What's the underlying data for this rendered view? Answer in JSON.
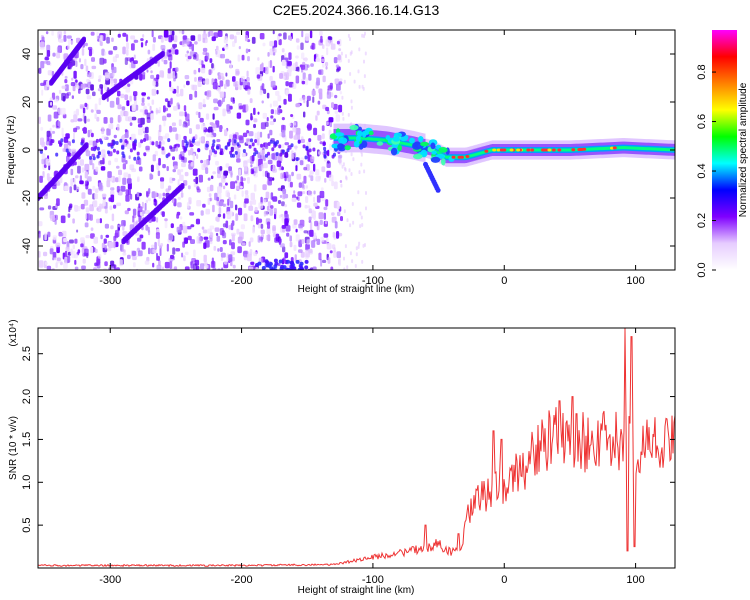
{
  "title": "C2E5.2024.366.16.14.G13",
  "chart_data": [
    {
      "type": "heatmap",
      "xlabel": "Height of straight line (km)",
      "ylabel": "Frequency (Hz)",
      "xlim": [
        -355,
        130
      ],
      "ylim": [
        -50,
        50
      ],
      "xticks": [
        -300,
        -200,
        -100,
        0,
        100
      ],
      "yticks": [
        -40,
        -20,
        0,
        20,
        40
      ],
      "colorbar": {
        "label": "Normalized spectral amplitude",
        "range": [
          0,
          0.97
        ],
        "ticks": [
          0.0,
          0.2,
          0.4,
          0.6,
          0.8
        ],
        "tick_labels": [
          "0.0",
          "0.2",
          "0.4",
          "0.6",
          "0.8"
        ],
        "colormap": [
          "#ffffff",
          "#e6ccff",
          "#7f00ff",
          "#0000ff",
          "#00ffff",
          "#00ff00",
          "#ffff00",
          "#ff8000",
          "#ff0000",
          "#ff00ff"
        ]
      },
      "features": {
        "noise_region_x": [
          -355,
          -125
        ],
        "carrier_track": [
          [
            -130,
            5
          ],
          [
            -110,
            5
          ],
          [
            -90,
            4
          ],
          [
            -70,
            2
          ],
          [
            -55,
            0
          ],
          [
            -45,
            -3
          ],
          [
            -30,
            -3
          ],
          [
            -10,
            0
          ],
          [
            0,
            0
          ],
          [
            50,
            0
          ],
          [
            90,
            1
          ],
          [
            130,
            0
          ]
        ],
        "diagonal_streaks": [
          [
            [
              -345,
              28
            ],
            [
              -320,
              46
            ]
          ],
          [
            [
              -305,
              22
            ],
            [
              -260,
              40
            ]
          ],
          [
            [
              -355,
              -20
            ],
            [
              -318,
              2
            ]
          ],
          [
            [
              -290,
              -38
            ],
            [
              -245,
              -15
            ]
          ]
        ]
      }
    },
    {
      "type": "line",
      "xlabel": "Height of straight line (km)",
      "ylabel": "SNR (10 * v/v)",
      "yscale_label": "(x10⁴)",
      "xlim": [
        -355,
        130
      ],
      "ylim": [
        0,
        2.8
      ],
      "xticks": [
        -300,
        -200,
        -100,
        0,
        100
      ],
      "yticks": [
        0.5,
        1.0,
        1.5,
        2.0,
        2.5
      ],
      "ytick_labels": [
        "0.5",
        "1.0",
        "1.5",
        "2.0",
        "2.5"
      ],
      "color": "#ee3333",
      "trend": [
        [
          -355,
          0.03
        ],
        [
          -200,
          0.03
        ],
        [
          -130,
          0.04
        ],
        [
          -110,
          0.1
        ],
        [
          -90,
          0.15
        ],
        [
          -70,
          0.2
        ],
        [
          -50,
          0.28
        ],
        [
          -40,
          0.18
        ],
        [
          -32,
          0.25
        ],
        [
          -28,
          0.6
        ],
        [
          -20,
          0.8
        ],
        [
          -10,
          0.9
        ],
        [
          -5,
          1.0
        ],
        [
          0,
          0.95
        ],
        [
          10,
          1.1
        ],
        [
          20,
          1.3
        ],
        [
          30,
          1.45
        ],
        [
          40,
          1.52
        ],
        [
          60,
          1.48
        ],
        [
          80,
          1.47
        ],
        [
          90,
          1.45
        ],
        [
          100,
          1.45
        ],
        [
          130,
          1.45
        ]
      ],
      "spikes": [
        [
          -60,
          0.5
        ],
        [
          -35,
          0.4
        ],
        [
          -8,
          1.6
        ],
        [
          -2,
          1.5
        ],
        [
          42,
          1.95
        ],
        [
          52,
          2.0
        ],
        [
          55,
          1.8
        ],
        [
          92,
          2.8
        ],
        [
          94,
          0.2
        ],
        [
          97,
          2.7
        ],
        [
          99,
          0.25
        ],
        [
          101,
          1.2
        ]
      ]
    }
  ]
}
